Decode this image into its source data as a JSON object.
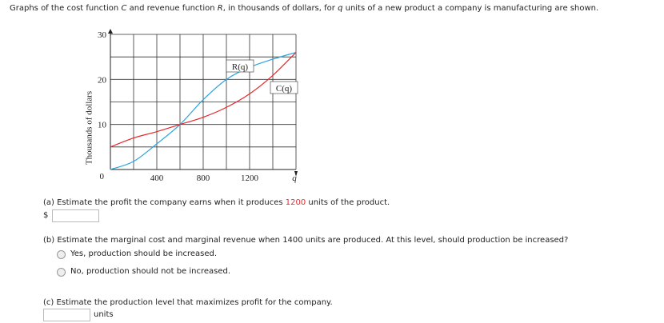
{
  "intro": [
    "Graphs of the cost function ",
    "C",
    " and revenue function ",
    "R",
    ", in thousands of dollars, for ",
    "q",
    " units of a new product a company is manufacturing are shown."
  ],
  "chart_data": {
    "type": "line",
    "ylabel": "Thousands of dollars",
    "xlabel": "q",
    "x": [
      0,
      200,
      400,
      600,
      800,
      1000,
      1200,
      1400,
      1600
    ],
    "series": [
      {
        "name": "R(q)",
        "color": "#29a3e0",
        "values": [
          0,
          1.8,
          5.7,
          10,
          15.5,
          20,
          22.7,
          24.5,
          26
        ]
      },
      {
        "name": "C(q)",
        "color": "#e8262b",
        "values": [
          5,
          7,
          8.4,
          10,
          11.6,
          13.8,
          16.8,
          20.9,
          26
        ]
      }
    ],
    "xlim": [
      0,
      1600
    ],
    "ylim": [
      0,
      30
    ],
    "xticks": [
      400,
      800,
      1200
    ],
    "yticks": [
      0,
      10,
      20,
      30
    ],
    "xgrid": [
      0,
      200,
      400,
      600,
      800,
      1000,
      1200,
      1400,
      1600
    ],
    "ygrid": [
      0,
      5,
      10,
      15,
      20,
      25,
      30
    ],
    "grid": true
  },
  "part_a": {
    "text": [
      "(a) Estimate the profit the company earns when it produces ",
      "1200",
      " units of the product."
    ],
    "prefix": "$"
  },
  "part_b": {
    "text": "(b) Estimate the marginal cost and marginal revenue when 1400 units are produced. At this level, should production be increased?",
    "options": [
      "Yes, production should be increased.",
      "No, production should not be increased."
    ]
  },
  "part_c": {
    "text": "(c) Estimate the production level that maximizes profit for the company.",
    "suffix": "units"
  }
}
